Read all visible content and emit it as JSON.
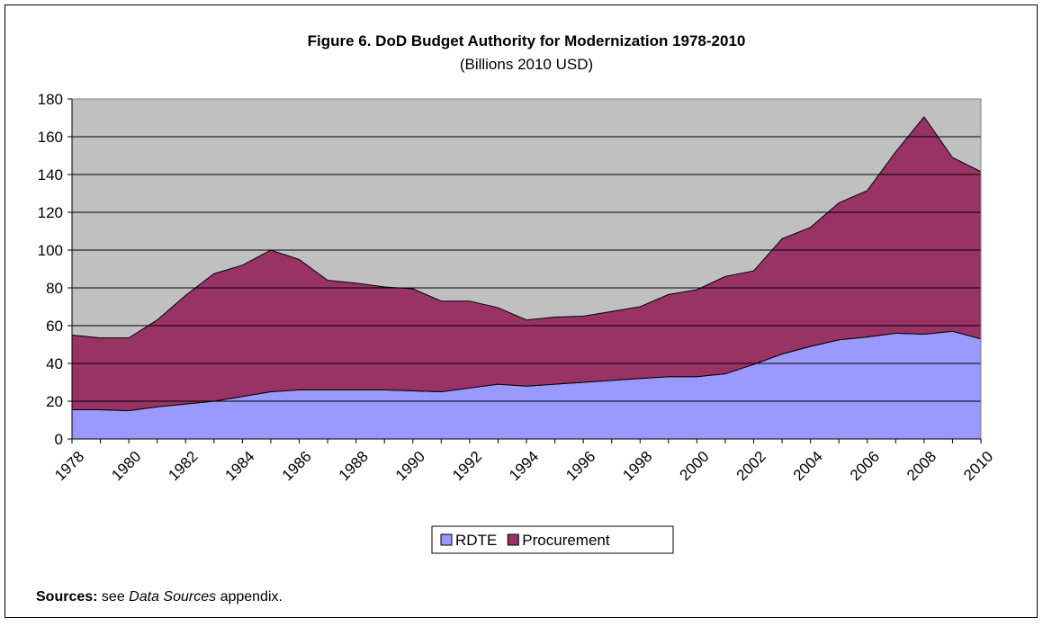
{
  "chart_data": {
    "type": "stacked_area",
    "title": "Figure 6.  DoD Budget Authority for Modernization 1978-2010",
    "subtitle": "(Billions 2010 USD)",
    "categories": [
      "1978",
      null,
      "1980",
      null,
      "1982",
      null,
      "1984",
      null,
      "1986",
      null,
      "1988",
      null,
      "1990",
      null,
      "1992",
      null,
      "1994",
      null,
      "1996",
      null,
      "1998",
      null,
      "2000",
      null,
      "2002",
      null,
      "2004",
      null,
      "2006",
      null,
      "2008",
      null,
      "2010"
    ],
    "series": [
      {
        "name": "RDTE",
        "color": "#9999ff",
        "values": [
          15.5,
          15.5,
          15,
          17,
          18.5,
          20,
          22.5,
          25,
          26,
          26,
          26,
          26,
          25.5,
          25,
          27,
          29,
          28,
          29,
          30,
          31,
          32,
          33,
          33,
          34.5,
          39.5,
          45,
          49,
          52.5,
          54,
          56,
          55.5,
          57,
          53
        ]
      },
      {
        "name": "Procurement",
        "color": "#993366",
        "values": [
          39.5,
          38,
          38.5,
          46,
          57.5,
          67.5,
          69.5,
          75,
          69,
          58,
          56.5,
          54.5,
          54,
          48,
          46,
          40.5,
          35,
          35.5,
          35,
          36.5,
          38,
          43.5,
          46,
          51.5,
          49.5,
          61,
          63,
          72.5,
          77.5,
          96,
          115,
          92,
          88.5
        ]
      }
    ],
    "ylim": [
      0,
      180
    ],
    "yticks": [
      0,
      20,
      40,
      60,
      80,
      100,
      120,
      140,
      160,
      180
    ],
    "grid": true,
    "plot_background": "#c0c0c0",
    "legend": "bottom",
    "sources": {
      "label": "Sources:",
      "text1": "see",
      "italic": "Data Sources",
      "text2": "appendix."
    }
  }
}
